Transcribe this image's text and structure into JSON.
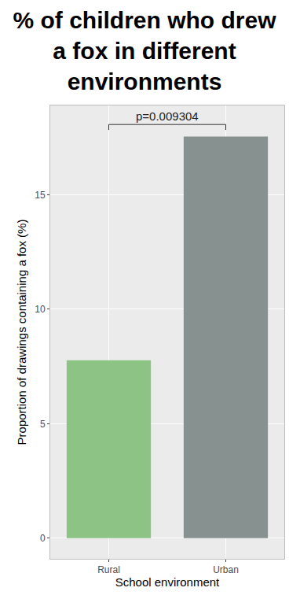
{
  "chart_data": {
    "type": "bar",
    "title": "% of children who drew a fox in different environments",
    "x_label": "School environment",
    "y_label": "Proportion of drawings containing a fox (%)",
    "categories": [
      "Rural",
      "Urban"
    ],
    "values": [
      7.77,
      17.54
    ],
    "colors": [
      "#8dc486",
      "#879290"
    ],
    "ylim": [
      -0.9,
      18.9
    ],
    "yticks": [
      0,
      5,
      10,
      15
    ],
    "grid": true,
    "annotations": [
      {
        "text": "p=0.009304",
        "between": [
          "Rural",
          "Urban"
        ]
      }
    ]
  }
}
